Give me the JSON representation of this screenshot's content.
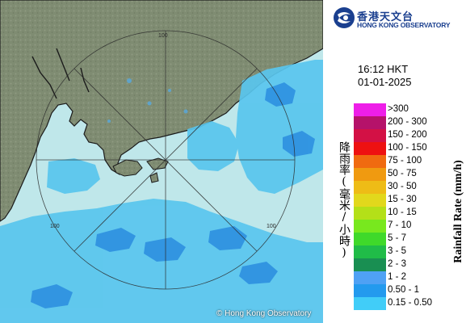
{
  "app": {
    "logo_chinese": "香港天文台",
    "logo_english": "HONG KONG OBSERVATORY",
    "logo_mark": "observatory-swirl-logo"
  },
  "map": {
    "copyright": "© Hong Kong Observatory",
    "range_rings_km": [
      "100",
      "100",
      "100"
    ],
    "colors": {
      "sea": "#bfe7ea",
      "land": "#7f8c72",
      "coast": "#1b1b1b",
      "rain_light": "#59c6ee",
      "rain_medium": "#2e90e0"
    }
  },
  "timestamp": {
    "time": "16:12 HKT",
    "date": "01-01-2025"
  },
  "legend": {
    "title_zh": "降雨率(毫米/小時)",
    "title_en": "Rainfall Rate (mm/h)",
    "items": [
      {
        "label": ">300",
        "color": "#ee1ee8"
      },
      {
        "label": "200 - 300",
        "color": "#b5126a"
      },
      {
        "label": "150 - 200",
        "color": "#d31145"
      },
      {
        "label": "100 - 150",
        "color": "#ee1111"
      },
      {
        "label": "75 - 100",
        "color": "#f06a10"
      },
      {
        "label": "50 - 75",
        "color": "#f09a10"
      },
      {
        "label": "30 - 50",
        "color": "#eebc16"
      },
      {
        "label": "15 - 30",
        "color": "#e2d81c"
      },
      {
        "label": "10 - 15",
        "color": "#b4e018"
      },
      {
        "label": "7 - 10",
        "color": "#78e81e"
      },
      {
        "label": "5 - 7",
        "color": "#3fd92a"
      },
      {
        "label": "3 - 5",
        "color": "#20bc48"
      },
      {
        "label": "2 - 3",
        "color": "#198f52"
      },
      {
        "label": "1 - 2",
        "color": "#4fa1f4"
      },
      {
        "label": "0.50 - 1",
        "color": "#239aee"
      },
      {
        "label": "0.15 - 0.50",
        "color": "#41cdf8"
      }
    ]
  }
}
